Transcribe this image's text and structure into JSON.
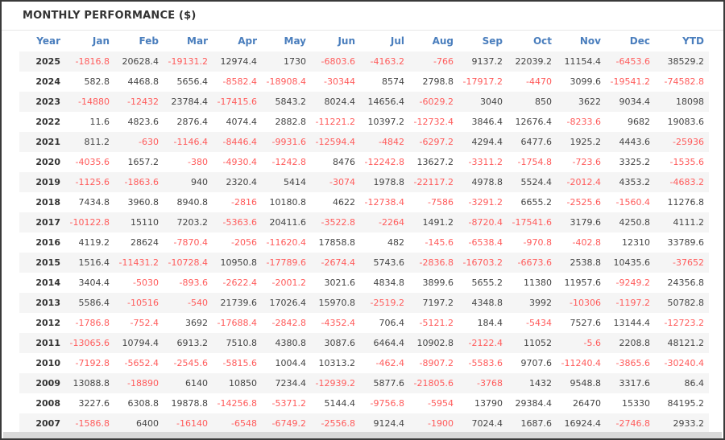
{
  "title": "MONTHLY PERFORMANCE ($)",
  "colors": {
    "header_text": "#4a7ebd",
    "negative_value": "#ff5b5b",
    "positive_value": "#444444",
    "row_stripe": "#f5f5f5",
    "frame_border": "#3a3a3a"
  },
  "table": {
    "columns": [
      "Year",
      "Jan",
      "Feb",
      "Mar",
      "Apr",
      "May",
      "Jun",
      "Jul",
      "Aug",
      "Sep",
      "Oct",
      "Nov",
      "Dec",
      "YTD"
    ],
    "rows": [
      {
        "year": "2025",
        "values": [
          "-1816.8",
          "20628.4",
          "-19131.2",
          "12974.4",
          "1730",
          "-6803.6",
          "-4163.2",
          "-766",
          "9137.2",
          "22039.2",
          "11154.4",
          "-6453.6",
          "38529.2"
        ]
      },
      {
        "year": "2024",
        "values": [
          "582.8",
          "4468.8",
          "5656.4",
          "-8582.4",
          "-18908.4",
          "-30344",
          "8574",
          "2798.8",
          "-17917.2",
          "-4470",
          "3099.6",
          "-19541.2",
          "-74582.8"
        ]
      },
      {
        "year": "2023",
        "values": [
          "-14880",
          "-12432",
          "23784.4",
          "-17415.6",
          "5843.2",
          "8024.4",
          "14656.4",
          "-6029.2",
          "3040",
          "850",
          "3622",
          "9034.4",
          "18098"
        ]
      },
      {
        "year": "2022",
        "values": [
          "11.6",
          "4823.6",
          "2876.4",
          "4074.4",
          "2882.8",
          "-11221.2",
          "10397.2",
          "-12732.4",
          "3846.4",
          "12676.4",
          "-8233.6",
          "9682",
          "19083.6"
        ]
      },
      {
        "year": "2021",
        "values": [
          "811.2",
          "-630",
          "-1146.4",
          "-8446.4",
          "-9931.6",
          "-12594.4",
          "-4842",
          "-6297.2",
          "4294.4",
          "6477.6",
          "1925.2",
          "4443.6",
          "-25936"
        ]
      },
      {
        "year": "2020",
        "values": [
          "-4035.6",
          "1657.2",
          "-380",
          "-4930.4",
          "-1242.8",
          "8476",
          "-12242.8",
          "13627.2",
          "-3311.2",
          "-1754.8",
          "-723.6",
          "3325.2",
          "-1535.6"
        ]
      },
      {
        "year": "2019",
        "values": [
          "-1125.6",
          "-1863.6",
          "940",
          "2320.4",
          "5414",
          "-3074",
          "1978.8",
          "-22117.2",
          "4978.8",
          "5524.4",
          "-2012.4",
          "4353.2",
          "-4683.2"
        ]
      },
      {
        "year": "2018",
        "values": [
          "7434.8",
          "3960.8",
          "8940.8",
          "-2816",
          "10180.8",
          "4622",
          "-12738.4",
          "-7586",
          "-3291.2",
          "6655.2",
          "-2525.6",
          "-1560.4",
          "11276.8"
        ]
      },
      {
        "year": "2017",
        "values": [
          "-10122.8",
          "15110",
          "7203.2",
          "-5363.6",
          "20411.6",
          "-3522.8",
          "-2264",
          "1491.2",
          "-8720.4",
          "-17541.6",
          "3179.6",
          "4250.8",
          "4111.2"
        ]
      },
      {
        "year": "2016",
        "values": [
          "4119.2",
          "28624",
          "-7870.4",
          "-2056",
          "-11620.4",
          "17858.8",
          "482",
          "-145.6",
          "-6538.4",
          "-970.8",
          "-402.8",
          "12310",
          "33789.6"
        ]
      },
      {
        "year": "2015",
        "values": [
          "1516.4",
          "-11431.2",
          "-10728.4",
          "10950.8",
          "-17789.6",
          "-2674.4",
          "5743.6",
          "-2836.8",
          "-16703.2",
          "-6673.6",
          "2538.8",
          "10435.6",
          "-37652"
        ]
      },
      {
        "year": "2014",
        "values": [
          "3404.4",
          "-5030",
          "-893.6",
          "-2622.4",
          "-2001.2",
          "3021.6",
          "4834.8",
          "3899.6",
          "5655.2",
          "11380",
          "11957.6",
          "-9249.2",
          "24356.8"
        ]
      },
      {
        "year": "2013",
        "values": [
          "5586.4",
          "-10516",
          "-540",
          "21739.6",
          "17026.4",
          "15970.8",
          "-2519.2",
          "7197.2",
          "4348.8",
          "3992",
          "-10306",
          "-1197.2",
          "50782.8"
        ]
      },
      {
        "year": "2012",
        "values": [
          "-1786.8",
          "-752.4",
          "3692",
          "-17688.4",
          "-2842.8",
          "-4352.4",
          "706.4",
          "-5121.2",
          "184.4",
          "-5434",
          "7527.6",
          "13144.4",
          "-12723.2"
        ]
      },
      {
        "year": "2011",
        "values": [
          "-13065.6",
          "10794.4",
          "6913.2",
          "7510.8",
          "4380.8",
          "3087.6",
          "6464.4",
          "10902.8",
          "-2122.4",
          "11052",
          "-5.6",
          "2208.8",
          "48121.2"
        ]
      },
      {
        "year": "2010",
        "values": [
          "-7192.8",
          "-5652.4",
          "-2545.6",
          "-5815.6",
          "1004.4",
          "10313.2",
          "-462.4",
          "-8907.2",
          "-5583.6",
          "9707.6",
          "-11240.4",
          "-3865.6",
          "-30240.4"
        ]
      },
      {
        "year": "2009",
        "values": [
          "13088.8",
          "-18890",
          "6140",
          "10850",
          "7234.4",
          "-12939.2",
          "5877.6",
          "-21805.6",
          "-3768",
          "1432",
          "9548.8",
          "3317.6",
          "86.4"
        ]
      },
      {
        "year": "2008",
        "values": [
          "3227.6",
          "6308.8",
          "19878.8",
          "-14256.8",
          "-5371.2",
          "5144.4",
          "-9756.8",
          "-5954",
          "13790",
          "29384.4",
          "26470",
          "15330",
          "84195.2"
        ]
      },
      {
        "year": "2007",
        "values": [
          "-1586.8",
          "6400",
          "-16140",
          "-6548",
          "-6749.2",
          "-2556.8",
          "9124.4",
          "-1900",
          "7024.4",
          "1687.6",
          "16924.4",
          "-2746.8",
          "2933.2"
        ]
      }
    ]
  }
}
